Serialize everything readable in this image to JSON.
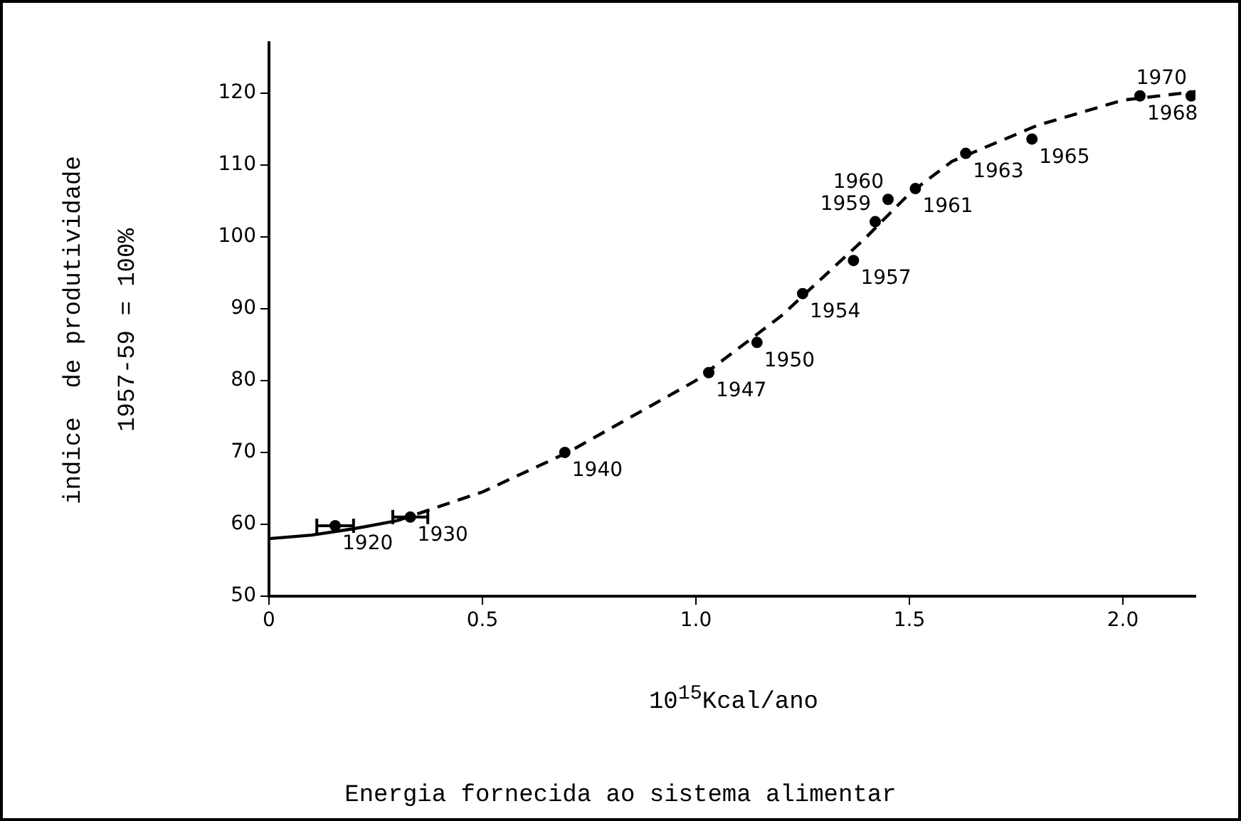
{
  "chart_data": {
    "type": "scatter",
    "xlabel": "10$^{15}$Kcal/ano",
    "ylabel": "indice  de produtividade\n1957-59 = 100%",
    "xlim": [
      0,
      2.17
    ],
    "ylim": [
      50,
      127
    ],
    "xticks": [
      0,
      {
        "value": 0.5,
        "label": "0.5"
      },
      {
        "value": 1,
        "label": "1.0"
      },
      {
        "value": 1.5,
        "label": "1.5"
      },
      {
        "value": 2,
        "label": "2.0"
      }
    ],
    "yticks": [
      50,
      60,
      70,
      80,
      90,
      100,
      110,
      120
    ],
    "grid": false,
    "legend": false,
    "series": [
      {
        "type": "scatter",
        "color": "#000000",
        "marker": "circle",
        "x": [
          0.155,
          0.331,
          0.693,
          1.03,
          1.143,
          1.25,
          1.369,
          1.42,
          1.45,
          1.514,
          1.632,
          1.787,
          2.04,
          2.16
        ],
        "values": [
          59.8,
          61,
          70,
          81.1,
          85.3,
          92.1,
          96.7,
          102.1,
          105.2,
          106.7,
          111.6,
          113.6,
          119.6,
          119.6
        ],
        "xerrors": [
          0.043,
          0.041,
          null,
          null,
          null,
          null,
          null,
          null,
          null,
          null,
          null,
          null,
          null,
          null
        ]
      },
      {
        "type": "line",
        "color": "#000000",
        "line_style": "solid",
        "marker": "none",
        "x": [
          0,
          0.1,
          0.2,
          0.3
        ],
        "values": [
          58,
          58.5,
          59.4,
          60.5
        ]
      },
      {
        "type": "line",
        "color": "#000000",
        "line_style": "dashed",
        "marker": "none",
        "x": [
          0.3,
          0.4,
          0.5,
          0.7,
          1.0,
          1.2,
          1.4,
          1.5,
          1.6,
          1.8,
          2.0,
          2.17
        ],
        "values": [
          60.5,
          62.5,
          64.5,
          70,
          80,
          89,
          100,
          106,
          110.5,
          115.5,
          119,
          120.2
        ]
      }
    ],
    "annotations": [
      {
        "text": "1920",
        "x": 0.155,
        "y": 59.8
      },
      {
        "text": "1930",
        "x": 0.331,
        "y": 61
      },
      {
        "text": "1940",
        "x": 0.693,
        "y": 70
      },
      {
        "text": "1947",
        "x": 1.03,
        "y": 81.1
      },
      {
        "text": "1950",
        "x": 1.143,
        "y": 85.3
      },
      {
        "text": "1954",
        "x": 1.25,
        "y": 92.1
      },
      {
        "text": "1957",
        "x": 1.369,
        "y": 96.7
      },
      {
        "text": "1959",
        "x": 1.42,
        "y": 102.1
      },
      {
        "text": "1960",
        "x": 1.45,
        "y": 105.2
      },
      {
        "text": "1961",
        "x": 1.514,
        "y": 106.7
      },
      {
        "text": "1963",
        "x": 1.632,
        "y": 111.6
      },
      {
        "text": "1965",
        "x": 1.787,
        "y": 113.6
      },
      {
        "text": "1968",
        "x": 2.04,
        "y": 119.6
      },
      {
        "text": "1970",
        "x": 2.16,
        "y": 119.6
      },
      "Energia fornecida ao sistema alimentar"
    ]
  }
}
